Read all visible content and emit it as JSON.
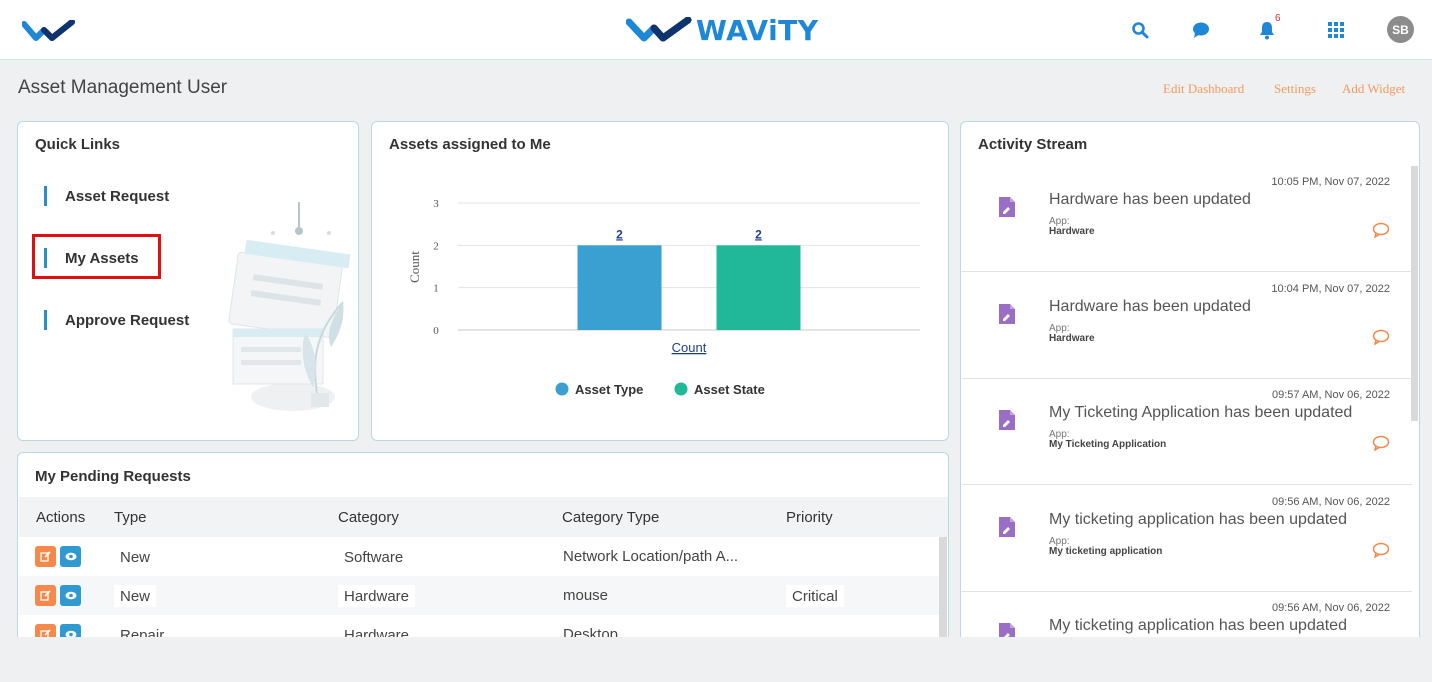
{
  "app": {
    "brand_name": "WAViTY",
    "brand_color": "#1e88d6",
    "notification_count": "6",
    "user_initials": "SB"
  },
  "header": {
    "page_title": "Asset Management User",
    "links": [
      "Edit Dashboard",
      "Settings",
      "Add Widget"
    ]
  },
  "quick_links": {
    "title": "Quick Links",
    "items": [
      "Asset Request",
      "My Assets",
      "Approve Request"
    ],
    "highlighted": "My Assets"
  },
  "assets_chart": {
    "title": "Assets assigned to Me"
  },
  "chart_data": {
    "type": "bar",
    "categories": [
      "Count"
    ],
    "series": [
      {
        "name": "Asset Type",
        "values": [
          2
        ],
        "color": "#3a9fd1"
      },
      {
        "name": "Asset State",
        "values": [
          2
        ],
        "color": "#20b898"
      }
    ],
    "xlabel": "Count",
    "ylabel": "Count",
    "ylim": [
      0,
      3
    ],
    "yticks": [
      "0",
      "1",
      "2",
      "3"
    ],
    "data_labels": [
      "2",
      "2"
    ],
    "legend_position": "bottom",
    "grid": true
  },
  "pending_requests": {
    "title": "My Pending Requests",
    "columns": [
      "Actions",
      "Type",
      "Category",
      "Category Type",
      "Priority"
    ],
    "rows": [
      {
        "type": "New",
        "category": "Software",
        "category_type": "Network Location/path A...",
        "priority": ""
      },
      {
        "type": "New",
        "category": "Hardware",
        "category_type": "mouse",
        "priority": "Critical"
      },
      {
        "type": "Repair",
        "category": "Hardware",
        "category_type": "Desktop",
        "priority": ""
      }
    ]
  },
  "activity_stream": {
    "title": "Activity Stream",
    "app_label": "App:",
    "items": [
      {
        "time": "10:05 PM, Nov 07, 2022",
        "message": "Hardware has been updated",
        "app": "Hardware"
      },
      {
        "time": "10:04 PM, Nov 07, 2022",
        "message": "Hardware has been updated",
        "app": "Hardware"
      },
      {
        "time": "09:57 AM, Nov 06, 2022",
        "message": "My Ticketing Application has been updated",
        "app": "My Ticketing Application"
      },
      {
        "time": "09:56 AM, Nov 06, 2022",
        "message": "My ticketing application has been updated",
        "app": "My ticketing application"
      },
      {
        "time": "09:56 AM, Nov 06, 2022",
        "message": "My ticketing application has been updated",
        "app": ""
      }
    ]
  },
  "icons": {
    "search": "search-icon",
    "chat": "chat-icon",
    "bell": "bell-icon",
    "apps": "apps-grid-icon",
    "edit": "edit-icon",
    "view": "eye-icon",
    "document": "document-edit-icon",
    "comment": "comment-icon"
  },
  "colors": {
    "accent_link": "#f59a5d",
    "icon_blue": "#1e88d6",
    "activity_icon": "#9b6ec6",
    "highlight": "#e01010"
  }
}
